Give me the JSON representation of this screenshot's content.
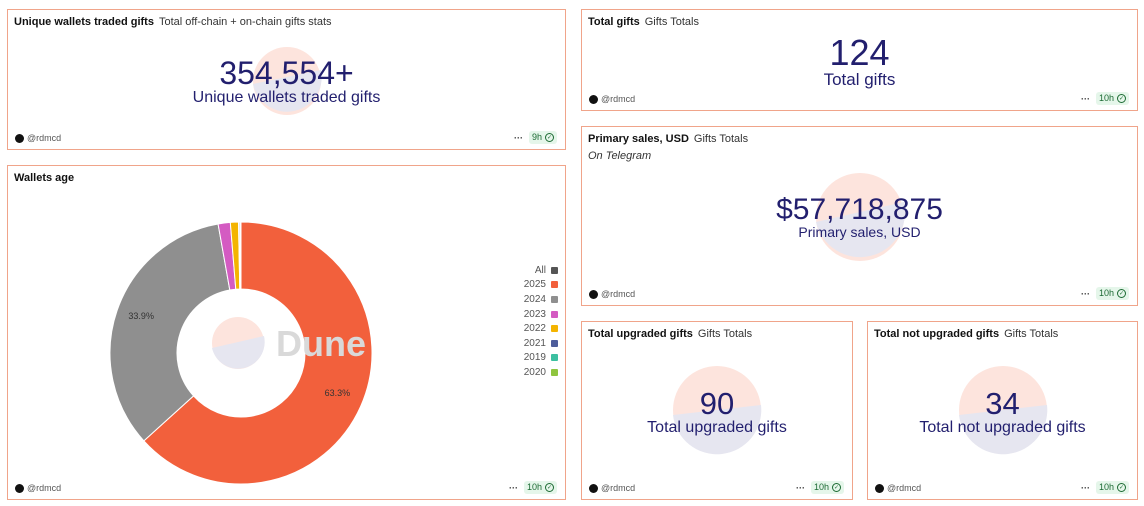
{
  "colors": {
    "accent_border": "#f0a48a",
    "counter_text": "#221f6e",
    "badge_bg": "#e5f6ea",
    "badge_text": "#1d6b34"
  },
  "cards": {
    "unique_wallets": {
      "title": "Unique wallets traded gifts",
      "subtitle": "Total off-chain + on-chain gifts stats",
      "value": "354,554+",
      "label": "Unique wallets traded gifts",
      "author": "@rdmcd",
      "refresh": "9h"
    },
    "wallets_age": {
      "title": "Wallets age",
      "author": "@rdmcd",
      "refresh": "10h",
      "watermark": "Dune"
    },
    "total_gifts": {
      "title": "Total gifts",
      "subtitle": "Gifts Totals",
      "value": "124",
      "label": "Total gifts",
      "author": "@rdmcd",
      "refresh": "10h"
    },
    "primary_sales": {
      "title": "Primary sales, USD",
      "subtitle": "Gifts Totals",
      "note": "On Telegram",
      "value": "$57,718,875",
      "label": "Primary sales, USD",
      "author": "@rdmcd",
      "refresh": "10h"
    },
    "total_upgraded": {
      "title": "Total upgraded gifts",
      "subtitle": "Gifts Totals",
      "value": "90",
      "label": "Total upgraded gifts",
      "author": "@rdmcd",
      "refresh": "10h"
    },
    "total_not_upgraded": {
      "title": "Total not upgraded gifts",
      "subtitle": "Gifts Totals",
      "value": "34",
      "label": "Total not upgraded gifts",
      "author": "@rdmcd",
      "refresh": "10h"
    }
  },
  "chart_data": {
    "type": "pie",
    "title": "Wallets age",
    "legend_position": "right",
    "legend": [
      {
        "name": "All",
        "color": "#555555"
      },
      {
        "name": "2025",
        "color": "#f2603c"
      },
      {
        "name": "2024",
        "color": "#8f8f8f"
      },
      {
        "name": "2023",
        "color": "#d45bc2"
      },
      {
        "name": "2022",
        "color": "#f4b400"
      },
      {
        "name": "2021",
        "color": "#4e5d9b"
      },
      {
        "name": "2019",
        "color": "#3cbfa0"
      },
      {
        "name": "2020",
        "color": "#8fc53f"
      }
    ],
    "slices": [
      {
        "name": "2025",
        "value": 63.3,
        "label": "63.3%",
        "color": "#f2603c"
      },
      {
        "name": "2024",
        "value": 33.9,
        "label": "33.9%",
        "color": "#8f8f8f"
      },
      {
        "name": "2023",
        "value": 1.5,
        "label": "",
        "color": "#d45bc2"
      },
      {
        "name": "2022",
        "value": 1.0,
        "label": "",
        "color": "#f4b400"
      },
      {
        "name": "2021",
        "value": 0.15,
        "label": "",
        "color": "#4e5d9b"
      },
      {
        "name": "2019",
        "value": 0.1,
        "label": "",
        "color": "#3cbfa0"
      },
      {
        "name": "2020",
        "value": 0.05,
        "label": "",
        "color": "#8fc53f"
      }
    ]
  }
}
